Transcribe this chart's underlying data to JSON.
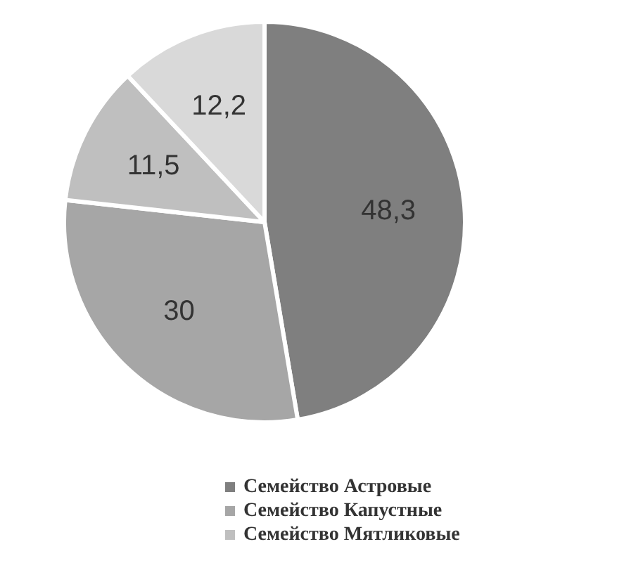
{
  "chart_data": {
    "type": "pie",
    "categories": [
      "Семейство Астровые",
      "Семейство Капустные",
      "Семейство Мятликовые",
      null
    ],
    "values": [
      48.3,
      30,
      11.5,
      12.2
    ],
    "value_labels": [
      "48,3",
      "30",
      "11,5",
      "12,2"
    ],
    "colors": [
      "#7f7f7f",
      "#a6a6a6",
      "#bfbfbf",
      "#d9d9d9"
    ],
    "legend": "bottom"
  }
}
